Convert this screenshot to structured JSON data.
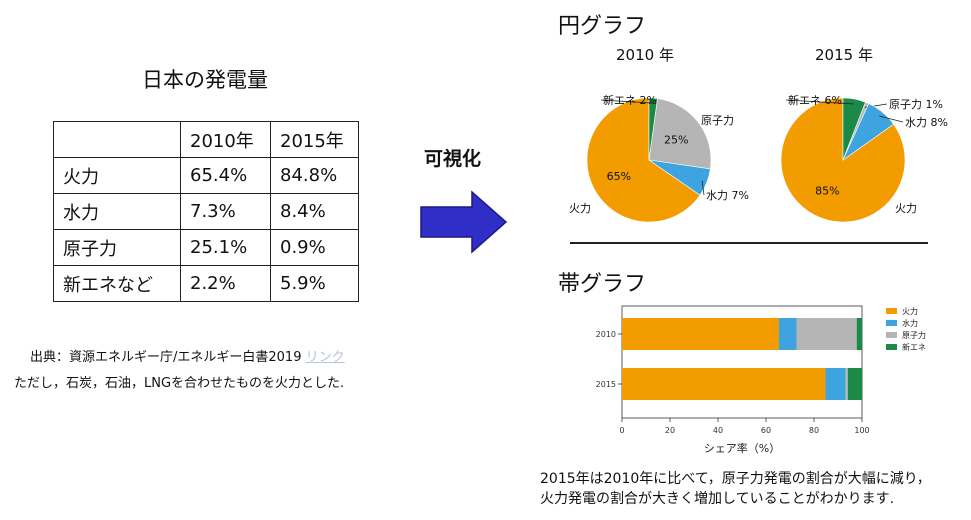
{
  "table": {
    "title": "日本の発電量",
    "headers": [
      "",
      "2010年",
      "2015年"
    ],
    "rows": [
      [
        "火力",
        "65.4%",
        "84.8%"
      ],
      [
        "水力",
        "7.3%",
        "8.4%"
      ],
      [
        "原子力",
        "25.1%",
        "0.9%"
      ],
      [
        "新エネなど",
        "2.2%",
        "5.9%"
      ]
    ],
    "source_prefix": "出典：資源エネルギー庁/エネルギー白書2019",
    "source_link": "リンク",
    "note": "ただし，石炭，石油，LNGを合わせたものを火力とした."
  },
  "arrow": {
    "label": "可視化"
  },
  "pie_section": {
    "heading": "円グラフ"
  },
  "bar_section": {
    "heading": "帯グラフ"
  },
  "summary": {
    "line1": "2015年は2010年に比べて，原子力発電の割合が大幅に減り，",
    "line2": "火力発電の割合が大きく増加していることがわかります."
  },
  "colors": {
    "火力": "#f39c00",
    "水力": "#3da4e0",
    "原子力": "#b5b5b5",
    "新エネ": "#1a8a46",
    "arrow": "#2f2fc8"
  },
  "chart_data": [
    {
      "type": "pie",
      "title": "2010 年",
      "slices": [
        {
          "label": "火力",
          "value": 65.4,
          "display": "65%"
        },
        {
          "label": "水力",
          "value": 7.3,
          "display": "水力 7%"
        },
        {
          "label": "原子力",
          "value": 25.1,
          "display": "25%"
        },
        {
          "label": "新エネ",
          "value": 2.2,
          "display": "新エネ 2%"
        }
      ],
      "outer_labels": {
        "火力": "火力",
        "原子力": "原子力"
      }
    },
    {
      "type": "pie",
      "title": "2015 年",
      "slices": [
        {
          "label": "火力",
          "value": 84.8,
          "display": "85%"
        },
        {
          "label": "水力",
          "value": 8.4,
          "display": "水力 8%"
        },
        {
          "label": "原子力",
          "value": 0.9,
          "display": "原子力 1%"
        },
        {
          "label": "新エネ",
          "value": 5.9,
          "display": "新エネ 6%"
        }
      ],
      "outer_labels": {
        "火力": "火力"
      }
    },
    {
      "type": "bar",
      "orientation": "horizontal-stacked",
      "categories": [
        "2010",
        "2015"
      ],
      "series": [
        {
          "name": "火力",
          "values": [
            65.4,
            84.8
          ]
        },
        {
          "name": "水力",
          "values": [
            7.3,
            8.4
          ]
        },
        {
          "name": "原子力",
          "values": [
            25.1,
            0.9
          ]
        },
        {
          "name": "新エネ",
          "values": [
            2.2,
            5.9
          ]
        }
      ],
      "xlabel": "シェア率（%）",
      "xlim": [
        0,
        100
      ],
      "xticks": [
        "0",
        "20",
        "40",
        "60",
        "80",
        "100"
      ],
      "legend": "right"
    }
  ]
}
